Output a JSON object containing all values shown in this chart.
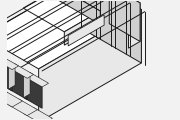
{
  "bg_color": "#f2f2f2",
  "line_color": "#1a1a1a",
  "lw": 0.7,
  "fill_light": "#ffffff",
  "fill_mid": "#e8e8e8",
  "fill_dark": "#d0d0d0",
  "fill_cavity": "#3a3a3a",
  "figsize": [
    1.8,
    1.2
  ],
  "dpi": 100,
  "n_cavities": 4,
  "xlim": [
    -2.8,
    2.8
  ],
  "ylim": [
    -1.8,
    2.2
  ]
}
